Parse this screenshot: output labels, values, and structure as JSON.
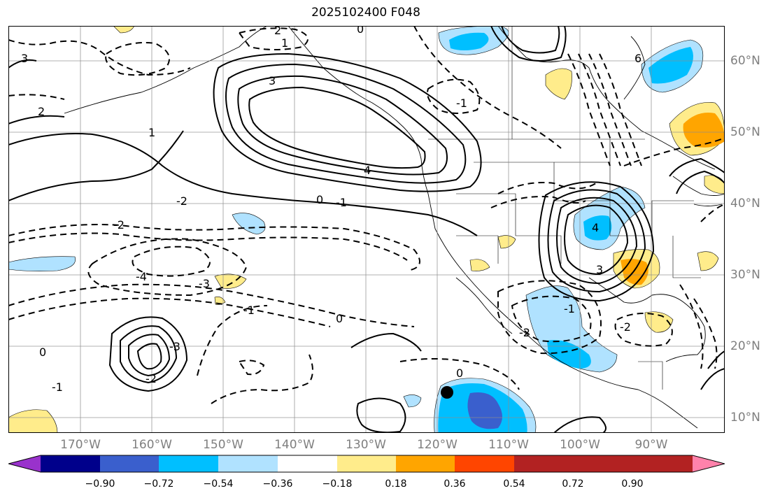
{
  "title": "2025102400 F048",
  "lat_labels": [
    "60°N",
    "50°N",
    "40°N",
    "30°N",
    "20°N",
    "10°N"
  ],
  "lon_labels": [
    "170°W",
    "160°W",
    "150°W",
    "140°W",
    "130°W",
    "120°W",
    "110°W",
    "100°W",
    "90°W"
  ],
  "colorbar": {
    "tick_labels": [
      "−0.90",
      "−0.72",
      "−0.54",
      "−0.36",
      "−0.18",
      "0.18",
      "0.36",
      "0.54",
      "0.72",
      "0.90"
    ],
    "colors": [
      "#9932cc",
      "#00008b",
      "#3a5fcd",
      "#00bfff",
      "#b0e2ff",
      "#ffffff",
      "#ffec8b",
      "#ffa500",
      "#ff4500",
      "#b22222",
      "#ff82ab"
    ]
  },
  "contour_labels": [
    "3",
    "2",
    "1",
    "0",
    "-1",
    "-2",
    "4",
    "6",
    "3",
    "2",
    "1",
    "0",
    "-1",
    "-2",
    "-3",
    "-4",
    "4",
    "3",
    "-1",
    "-2",
    "0",
    "-3",
    "0",
    "-1",
    "-2",
    "0",
    "-1",
    "-2"
  ],
  "marker": "tropical-cyclone-center"
}
